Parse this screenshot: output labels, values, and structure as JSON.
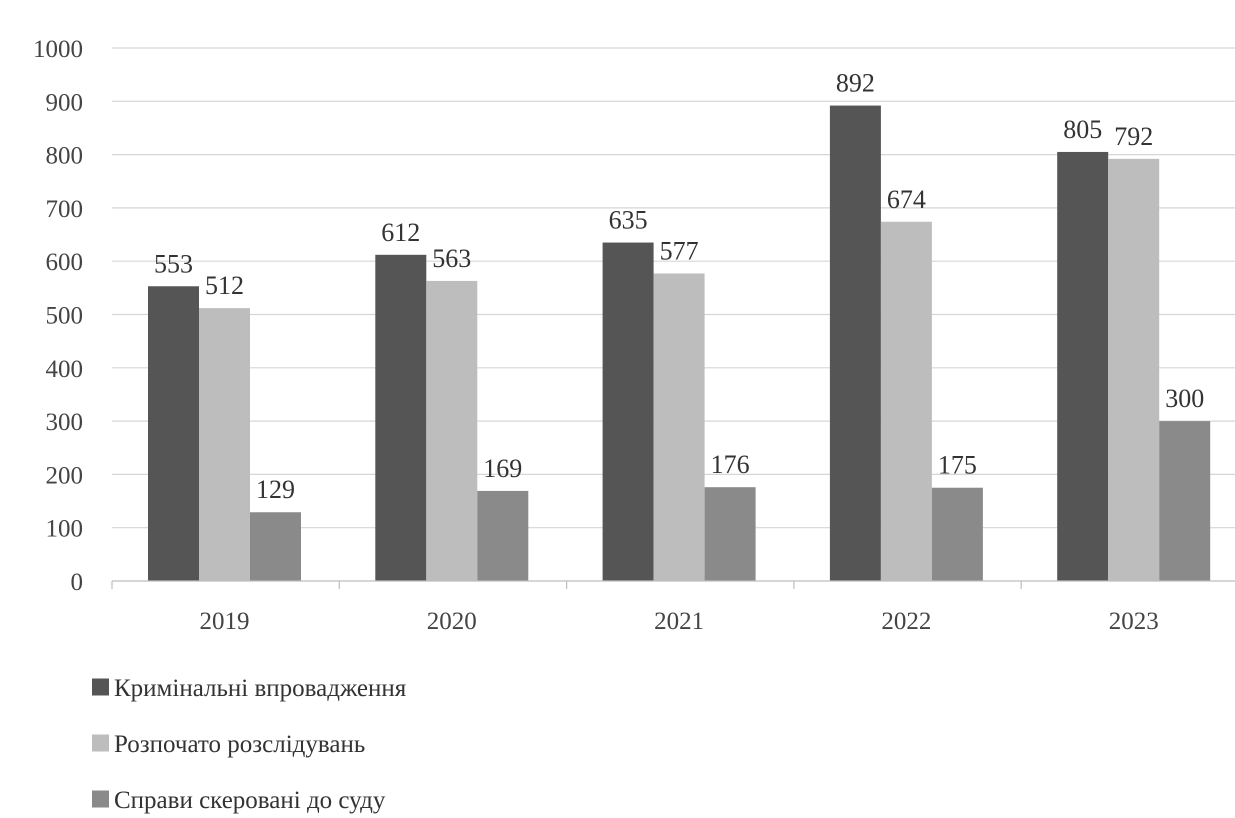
{
  "chart_data": {
    "type": "bar",
    "title": "",
    "xlabel": "",
    "ylabel": "",
    "categories": [
      "2019",
      "2020",
      "2021",
      "2022",
      "2023"
    ],
    "series": [
      {
        "name": "Кримінальні впровадження",
        "values": [
          553,
          612,
          635,
          892,
          805
        ],
        "color": "#555555"
      },
      {
        "name": "Розпочато розслідувань",
        "values": [
          512,
          563,
          577,
          674,
          792
        ],
        "color": "#bdbdbd"
      },
      {
        "name": "Справи скеровані до суду",
        "values": [
          129,
          169,
          176,
          175,
          300
        ],
        "color": "#8a8a8a"
      }
    ],
    "ylim": [
      0,
      1000
    ],
    "yticks": [
      "0",
      "100",
      "200",
      "300",
      "400",
      "500",
      "600",
      "700",
      "800",
      "900",
      "1000"
    ],
    "grid": true,
    "legend_position": "bottom-left",
    "data_labels": true
  }
}
